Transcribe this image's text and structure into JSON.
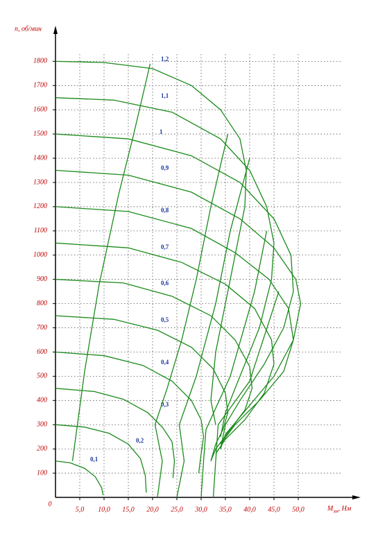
{
  "chart_data": {
    "type": "line",
    "grid": true,
    "color": "#1a8a1a",
    "x_label": {
      "main": "M",
      "sub": "эм",
      "suffix": ", Нм"
    },
    "y_label": "n, об/мин",
    "xlim": [
      0,
      62
    ],
    "ylim": [
      0,
      1930
    ],
    "xticks": [
      0,
      {
        "value": 5,
        "label": "5,0"
      },
      {
        "value": 10,
        "label": "10,0"
      },
      {
        "value": 15,
        "label": "15,0"
      },
      {
        "value": 20,
        "label": "20,0"
      },
      {
        "value": 25,
        "label": "25,0"
      },
      {
        "value": 30,
        "label": "30,0"
      },
      {
        "value": 35,
        "label": "35,0"
      },
      {
        "value": 40,
        "label": "40,0"
      },
      {
        "value": 45,
        "label": "45,0"
      },
      {
        "value": 50,
        "label": "50,0"
      }
    ],
    "yticks": [
      100,
      200,
      300,
      400,
      500,
      600,
      700,
      800,
      900,
      1000,
      1100,
      1200,
      1300,
      1400,
      1500,
      1600,
      1700,
      1800
    ],
    "series": [
      {
        "name": "0,1",
        "x": [
          0,
          3,
          6,
          8.2,
          9.5,
          9.8
        ],
        "values": [
          150,
          143,
          120,
          85,
          40,
          10
        ]
      },
      {
        "name": "0,2",
        "x": [
          0,
          6,
          11,
          15,
          17.5,
          18.5,
          18.7
        ],
        "values": [
          300,
          290,
          265,
          220,
          160,
          90,
          20
        ]
      },
      {
        "name": "0,3",
        "x": [
          0,
          8,
          14,
          19,
          22,
          24,
          24.5,
          24.2
        ],
        "values": [
          450,
          437,
          405,
          350,
          290,
          230,
          150,
          80
        ]
      },
      {
        "name": "0,4",
        "x": [
          0,
          10,
          18,
          24,
          28,
          30,
          30.5,
          30,
          29.5
        ],
        "values": [
          600,
          585,
          545,
          480,
          400,
          320,
          250,
          180,
          100
        ]
      },
      {
        "name": "0,5",
        "x": [
          0,
          12,
          21,
          28,
          32.5,
          35,
          35.5,
          34.5,
          33,
          32
        ],
        "values": [
          750,
          735,
          690,
          620,
          530,
          430,
          350,
          280,
          220,
          150
        ]
      },
      {
        "name": "0,6",
        "x": [
          0,
          14,
          24,
          32,
          37,
          40,
          40.5,
          39,
          36,
          33,
          32
        ],
        "values": [
          900,
          885,
          830,
          750,
          650,
          540,
          450,
          360,
          280,
          200,
          150
        ]
      },
      {
        "name": "0,7",
        "x": [
          0,
          15,
          26,
          35,
          41,
          44.5,
          45,
          43,
          39,
          35,
          33
        ],
        "values": [
          1050,
          1030,
          970,
          880,
          780,
          650,
          550,
          430,
          320,
          240,
          180
        ]
      },
      {
        "name": "0,8",
        "x": [
          0,
          15,
          28,
          37,
          44,
          48,
          49,
          47,
          42,
          37,
          34
        ],
        "values": [
          1200,
          1180,
          1110,
          1010,
          900,
          780,
          650,
          520,
          400,
          300,
          220
        ]
      },
      {
        "name": "0,9",
        "x": [
          0,
          15,
          28,
          38,
          45,
          49.5,
          50.5,
          49,
          45,
          40,
          35,
          34
        ],
        "values": [
          1350,
          1330,
          1260,
          1150,
          1030,
          900,
          800,
          650,
          500,
          380,
          260,
          200
        ]
      },
      {
        "name": "1",
        "x": [
          0,
          15,
          28,
          38,
          45,
          48.5,
          49,
          47,
          43,
          38,
          35,
          34
        ],
        "values": [
          1500,
          1480,
          1410,
          1300,
          1150,
          1000,
          850,
          700,
          550,
          400,
          300,
          200
        ]
      },
      {
        "name": "1,1",
        "x": [
          0,
          12,
          24,
          34,
          40,
          43.5,
          45,
          44.5,
          42,
          38,
          35,
          34
        ],
        "values": [
          1650,
          1640,
          1590,
          1480,
          1350,
          1200,
          1050,
          900,
          700,
          500,
          350,
          250
        ]
      },
      {
        "name": "1,2",
        "x": [
          0,
          10,
          20,
          28,
          34,
          38,
          39.3,
          39,
          37,
          35,
          33,
          32,
          33
        ],
        "values": [
          1800,
          1795,
          1770,
          1700,
          1600,
          1480,
          1350,
          1200,
          1000,
          800,
          600,
          400,
          300
        ]
      },
      {
        "x": [
          3.5,
          6,
          9,
          13,
          16,
          19.5
        ],
        "values": [
          150,
          520,
          880,
          1250,
          1490,
          1790
        ]
      },
      {
        "x": [
          21,
          22,
          20.5,
          23,
          26,
          29,
          32,
          35.5
        ],
        "values": [
          0,
          150,
          300,
          450,
          650,
          900,
          1200,
          1500
        ]
      },
      {
        "x": [
          25,
          26.5,
          25.5,
          29,
          33,
          36,
          40
        ],
        "values": [
          0,
          150,
          300,
          500,
          800,
          1100,
          1400
        ]
      },
      {
        "x": [
          30,
          30.5,
          31,
          36,
          41,
          43.5
        ],
        "values": [
          0,
          150,
          280,
          500,
          850,
          1100
        ]
      },
      {
        "x": [
          32.5,
          33,
          33.5,
          40,
          46
        ],
        "values": [
          0,
          150,
          300,
          480,
          850
        ]
      }
    ]
  }
}
